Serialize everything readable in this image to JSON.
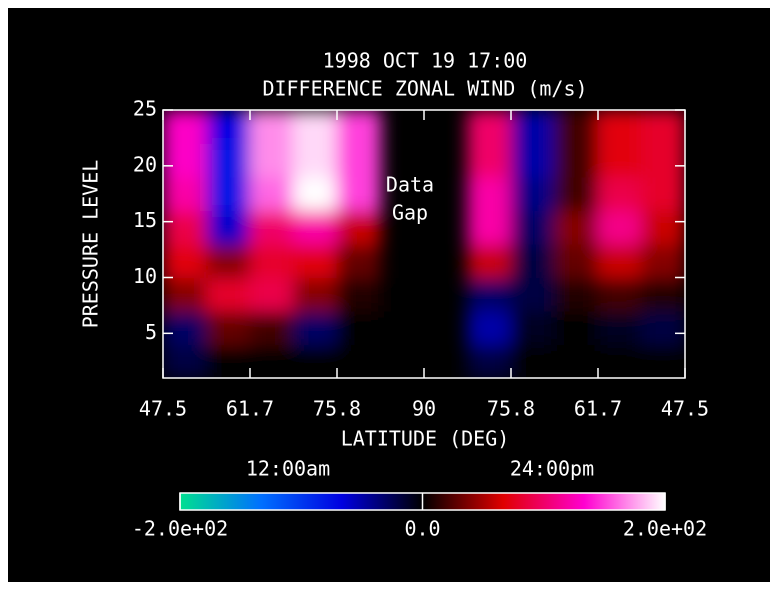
{
  "chart_data": {
    "type": "heatmap",
    "title": "1998 OCT 19 17:00",
    "subtitle": "DIFFERENCE ZONAL WIND (m/s)",
    "x_label": "LATITUDE (DEG)",
    "y_label": "PRESSURE LEVEL",
    "annotation": [
      "Data",
      "Gap"
    ],
    "xlim": [
      0,
      6
    ],
    "xticks": [
      {
        "value": 0,
        "label": "47.5"
      },
      {
        "value": 1,
        "label": "61.7"
      },
      {
        "value": 2,
        "label": "75.8"
      },
      {
        "value": 3,
        "label": "90"
      },
      {
        "value": 4,
        "label": "75.8"
      },
      {
        "value": 5,
        "label": "61.7"
      },
      {
        "value": 6,
        "label": "47.5"
      }
    ],
    "ylim": [
      1,
      25
    ],
    "yticks": [
      5,
      10,
      15,
      20,
      25
    ],
    "x_edges": [
      0,
      0.5,
      1,
      1.5,
      2,
      2.5,
      3,
      3.5,
      4,
      4.5,
      5,
      5.5,
      6
    ],
    "y_edges": [
      1,
      4,
      7,
      10,
      13,
      16,
      19,
      22,
      25
    ],
    "z": [
      [
        -20,
        0,
        0,
        0,
        0,
        null,
        null,
        -20,
        0,
        0,
        0,
        0
      ],
      [
        -30,
        30,
        20,
        -30,
        0,
        null,
        null,
        -50,
        -10,
        0,
        -10,
        -20
      ],
      [
        40,
        80,
        90,
        40,
        10,
        null,
        null,
        -30,
        -20,
        10,
        20,
        10
      ],
      [
        70,
        40,
        80,
        70,
        30,
        null,
        null,
        60,
        -20,
        30,
        60,
        40
      ],
      [
        90,
        -60,
        100,
        120,
        60,
        null,
        null,
        120,
        -30,
        40,
        110,
        60
      ],
      [
        120,
        -80,
        160,
        200,
        150,
        null,
        null,
        120,
        -40,
        20,
        90,
        80
      ],
      [
        130,
        -80,
        170,
        190,
        150,
        null,
        null,
        100,
        -50,
        20,
        70,
        80
      ],
      [
        130,
        -70,
        170,
        190,
        150,
        null,
        null,
        100,
        -50,
        20,
        70,
        80
      ]
    ],
    "zlim": [
      -200,
      200
    ],
    "colormap": [
      "#00e090",
      "#0070ff",
      "#0000e0",
      "#000000",
      "#e00000",
      "#ff00d0",
      "#ffffff"
    ],
    "colorbar_labels": [
      "12:00am",
      "24:00pm"
    ],
    "colorbar_ticks": [
      {
        "value": -200,
        "label": "-2.0e+02"
      },
      {
        "value": 0,
        "label": "0.0"
      },
      {
        "value": 200,
        "label": "2.0e+02"
      }
    ]
  }
}
